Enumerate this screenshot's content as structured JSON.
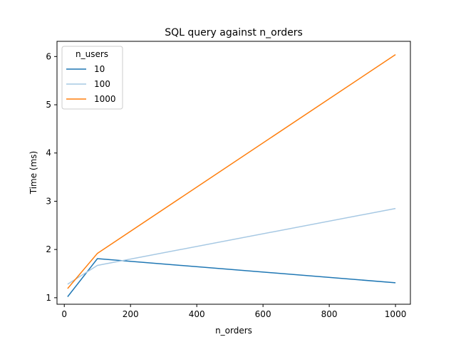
{
  "chart_data": {
    "type": "line",
    "title": "SQL query against n_orders",
    "xlabel": "n_orders",
    "ylabel": "Time (ms)",
    "x": [
      10,
      100,
      1000
    ],
    "xlim": [
      -22,
      1045
    ],
    "ylim": [
      0.865,
      6.315
    ],
    "xticks": [
      0,
      200,
      400,
      600,
      800,
      1000
    ],
    "yticks": [
      1,
      2,
      3,
      4,
      5,
      6
    ],
    "grid": false,
    "legend": {
      "title": "n_users",
      "placement": "top-left"
    },
    "series": [
      {
        "name": "10",
        "color": "#1f77b4",
        "values": [
          1.02,
          1.81,
          1.31
        ]
      },
      {
        "name": "100",
        "color": "#a6c8e3",
        "values": [
          1.28,
          1.67,
          2.85
        ]
      },
      {
        "name": "1000",
        "color": "#ff7f0e",
        "values": [
          1.19,
          1.92,
          6.04
        ]
      }
    ]
  }
}
